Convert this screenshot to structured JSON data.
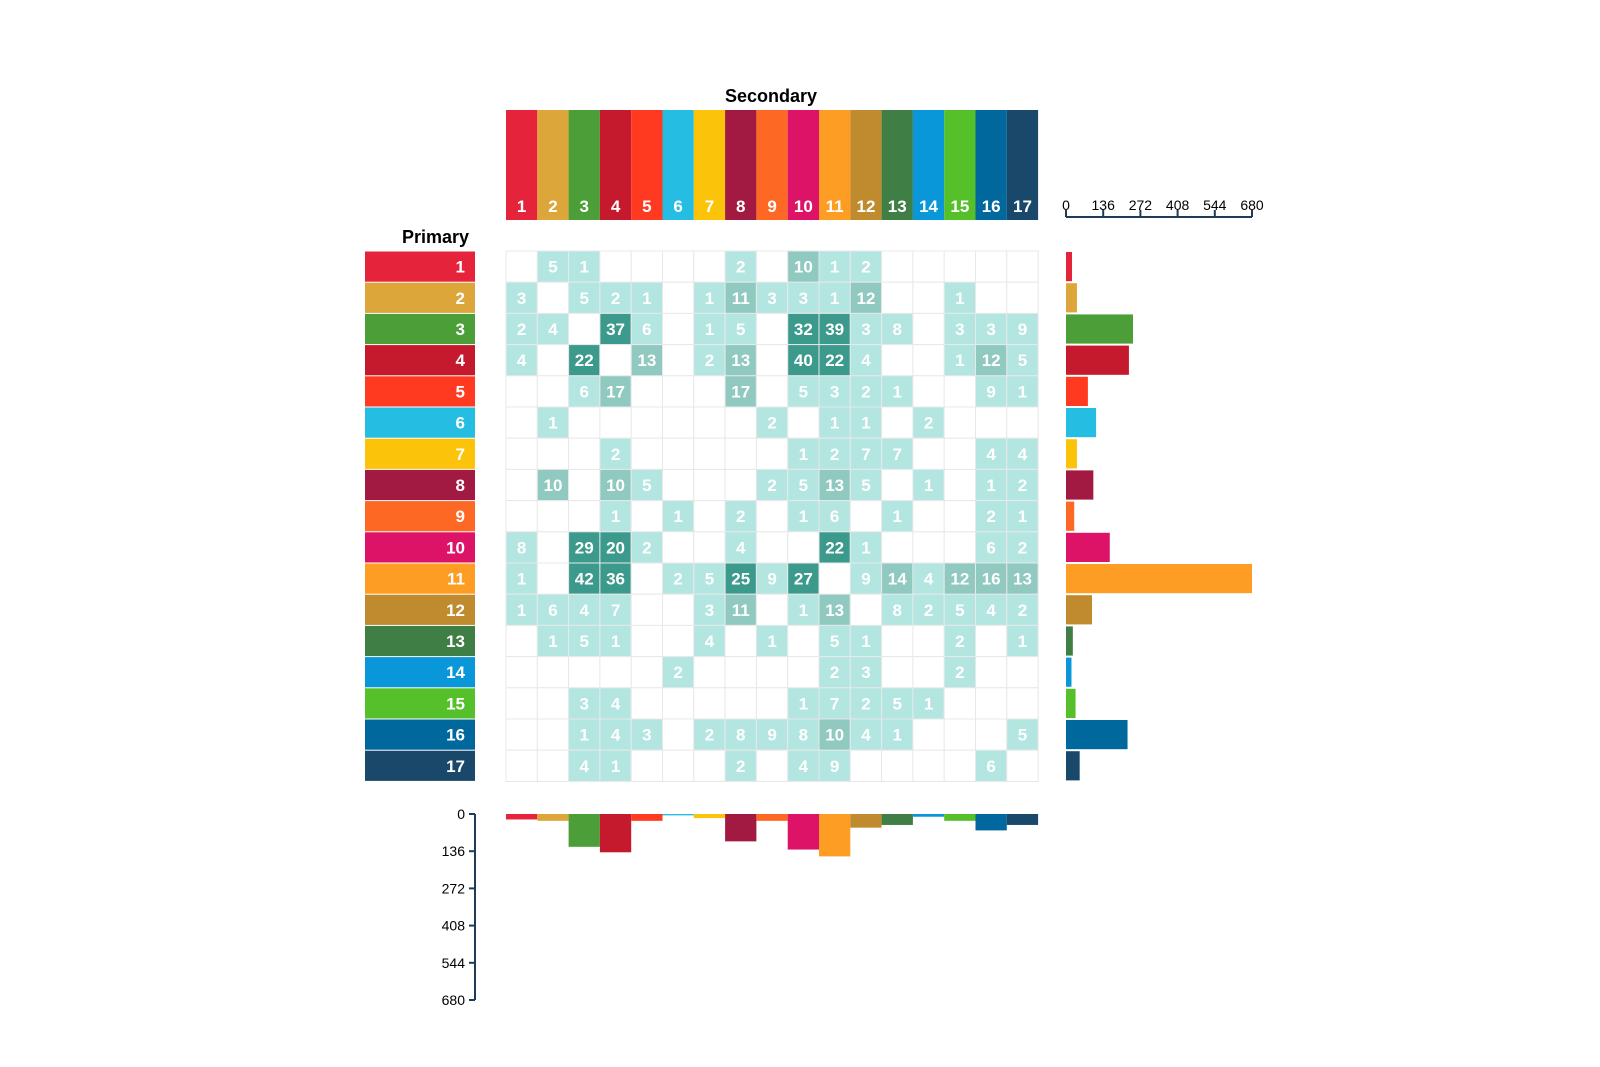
{
  "chart_data": {
    "type": "heatmap",
    "x_title": "Secondary",
    "y_title": "Primary",
    "categories": [
      "1",
      "2",
      "3",
      "4",
      "5",
      "6",
      "7",
      "8",
      "9",
      "10",
      "11",
      "12",
      "13",
      "14",
      "15",
      "16",
      "17"
    ],
    "category_colors": [
      "#e5243b",
      "#dda63a",
      "#4c9f38",
      "#c5192d",
      "#ff3a21",
      "#26bde2",
      "#fcc30b",
      "#a21942",
      "#fd6925",
      "#dd1367",
      "#fd9d24",
      "#bf8b2e",
      "#3f7e44",
      "#0a97d9",
      "#56c02b",
      "#00689d",
      "#19486a"
    ],
    "matrix": [
      [
        null,
        5,
        1,
        null,
        null,
        null,
        null,
        2,
        null,
        10,
        1,
        2,
        null,
        null,
        null,
        null,
        null
      ],
      [
        3,
        null,
        5,
        2,
        1,
        null,
        1,
        11,
        3,
        3,
        1,
        12,
        null,
        null,
        1,
        null,
        null
      ],
      [
        2,
        4,
        null,
        37,
        6,
        null,
        1,
        5,
        null,
        32,
        39,
        3,
        8,
        null,
        3,
        3,
        9
      ],
      [
        4,
        null,
        22,
        null,
        13,
        null,
        2,
        13,
        null,
        40,
        22,
        4,
        null,
        null,
        1,
        12,
        5
      ],
      [
        null,
        null,
        6,
        17,
        null,
        null,
        null,
        17,
        null,
        5,
        3,
        2,
        1,
        null,
        null,
        9,
        1
      ],
      [
        null,
        1,
        null,
        null,
        null,
        null,
        null,
        null,
        2,
        null,
        1,
        1,
        null,
        2,
        null,
        null,
        null
      ],
      [
        null,
        null,
        null,
        2,
        null,
        null,
        null,
        null,
        null,
        1,
        2,
        7,
        7,
        null,
        null,
        4,
        4
      ],
      [
        null,
        10,
        null,
        10,
        5,
        null,
        null,
        null,
        2,
        5,
        13,
        5,
        null,
        1,
        null,
        1,
        2
      ],
      [
        null,
        null,
        null,
        1,
        null,
        1,
        null,
        2,
        null,
        1,
        6,
        null,
        1,
        null,
        null,
        2,
        1
      ],
      [
        8,
        null,
        29,
        20,
        2,
        null,
        null,
        4,
        null,
        null,
        22,
        1,
        null,
        null,
        null,
        6,
        2
      ],
      [
        1,
        null,
        42,
        36,
        null,
        2,
        5,
        25,
        9,
        27,
        null,
        9,
        14,
        4,
        12,
        16,
        13
      ],
      [
        1,
        6,
        4,
        7,
        null,
        null,
        3,
        11,
        null,
        1,
        13,
        null,
        8,
        2,
        5,
        4,
        2
      ],
      [
        null,
        1,
        5,
        1,
        null,
        null,
        4,
        null,
        1,
        null,
        5,
        1,
        null,
        null,
        2,
        null,
        1
      ],
      [
        null,
        null,
        null,
        null,
        null,
        2,
        null,
        null,
        null,
        null,
        2,
        3,
        null,
        null,
        2,
        null,
        null
      ],
      [
        null,
        null,
        3,
        4,
        null,
        null,
        null,
        null,
        null,
        1,
        7,
        2,
        5,
        1,
        null,
        null,
        null
      ],
      [
        null,
        null,
        1,
        4,
        3,
        null,
        2,
        8,
        9,
        8,
        10,
        4,
        1,
        null,
        null,
        null,
        5
      ],
      [
        null,
        null,
        4,
        1,
        null,
        null,
        null,
        2,
        null,
        4,
        9,
        null,
        null,
        null,
        null,
        6,
        null
      ]
    ],
    "row_totals": [
      22,
      40,
      245,
      230,
      80,
      110,
      40,
      100,
      30,
      160,
      680,
      95,
      25,
      20,
      35,
      225,
      50
    ],
    "col_totals": [
      20,
      25,
      120,
      140,
      25,
      5,
      15,
      100,
      25,
      130,
      155,
      50,
      40,
      10,
      25,
      60,
      40
    ],
    "bar_axis": {
      "ticks": [
        0,
        136,
        272,
        408,
        544,
        680
      ],
      "max": 680
    },
    "cell_color_scale": {
      "low": "#b3e6e1",
      "mid": "#8fc9c0",
      "high": "#3b9a8c",
      "threshold_mid": 10,
      "threshold_high": 20
    }
  }
}
